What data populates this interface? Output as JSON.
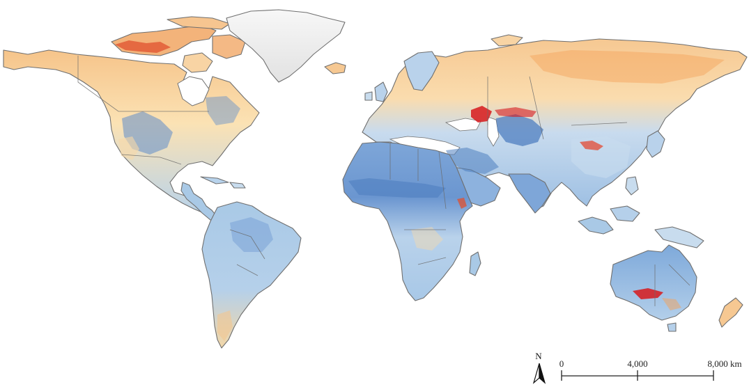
{
  "map": {
    "colors": {
      "very_high": "#d7191c",
      "high": "#f4a259",
      "moderate": "#fbe3b0",
      "neutral": "#eef3f6",
      "low": "#a9c9e6",
      "very_low": "#4f7fc0",
      "ice": "#ececec",
      "outline": "#6f6f6f"
    },
    "north_arrow": {
      "label": "N"
    },
    "scale_bar": {
      "ticks": [
        "0",
        "4,000",
        "8,000 km"
      ]
    }
  }
}
